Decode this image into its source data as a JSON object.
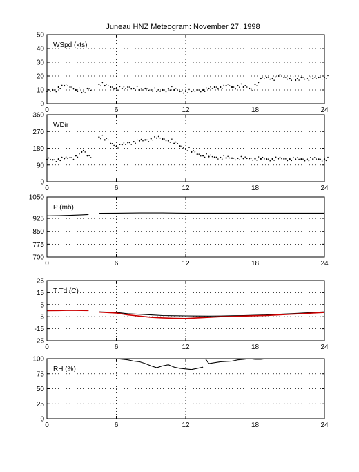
{
  "figure": {
    "title": "Juneau HNZ Meteogram:  November 27, 1998"
  },
  "chart_data": [
    {
      "type": "scatter",
      "panel_label": "WSpd (kts)",
      "xlim": [
        0,
        24
      ],
      "xticks": [
        0,
        6,
        12,
        18,
        24
      ],
      "ylim": [
        0,
        50
      ],
      "yticks": [
        0,
        10,
        20,
        30,
        40,
        50
      ],
      "grid": true,
      "series": [
        {
          "color": "#000000",
          "style": "dots",
          "x": [
            0.0,
            0.5,
            1.0,
            1.5,
            2.0,
            2.5,
            3.0,
            3.5,
            4.5,
            5.0,
            5.5,
            6.0,
            6.5,
            7.0,
            7.5,
            8.0,
            8.5,
            9.0,
            9.5,
            10.0,
            10.5,
            11.0,
            11.5,
            12.0,
            12.5,
            13.0,
            13.5,
            14.0,
            14.5,
            15.0,
            15.5,
            16.0,
            16.5,
            17.0,
            17.5,
            18.0,
            18.5,
            19.0,
            19.5,
            20.0,
            20.5,
            21.0,
            21.5,
            22.0,
            22.5,
            23.0,
            23.5,
            24.0
          ],
          "y": [
            9,
            10,
            12,
            13,
            12,
            10,
            8,
            11,
            14,
            13,
            12,
            11,
            11,
            12,
            11,
            10,
            11,
            10,
            9,
            10,
            11,
            10,
            9,
            9,
            9,
            10,
            10,
            11,
            12,
            12,
            13,
            12,
            13,
            12,
            11,
            14,
            18,
            19,
            18,
            20,
            19,
            18,
            17,
            19,
            18,
            18,
            19,
            19
          ]
        }
      ]
    },
    {
      "type": "scatter",
      "panel_label": "WDir",
      "xlim": [
        0,
        24
      ],
      "xticks": [
        0,
        6,
        12,
        18,
        24
      ],
      "ylim": [
        0,
        360
      ],
      "yticks": [
        0,
        90,
        180,
        270,
        360
      ],
      "grid": true,
      "series": [
        {
          "color": "#000000",
          "style": "dots",
          "x": [
            0.0,
            0.5,
            1.0,
            1.5,
            2.0,
            2.5,
            3.0,
            3.5,
            4.5,
            5.0,
            5.5,
            6.0,
            6.5,
            7.0,
            7.5,
            8.0,
            8.5,
            9.0,
            9.5,
            10.0,
            10.5,
            11.0,
            11.5,
            12.0,
            12.5,
            13.0,
            13.5,
            14.0,
            14.5,
            15.0,
            15.5,
            16.0,
            16.5,
            17.0,
            17.5,
            18.0,
            18.5,
            19.0,
            19.5,
            20.0,
            20.5,
            21.0,
            21.5,
            22.0,
            22.5,
            23.0,
            23.5,
            24.0
          ],
          "y": [
            120,
            118,
            122,
            125,
            130,
            140,
            160,
            140,
            240,
            225,
            205,
            190,
            200,
            210,
            215,
            220,
            225,
            232,
            235,
            230,
            220,
            205,
            192,
            175,
            160,
            148,
            140,
            135,
            132,
            130,
            128,
            127,
            126,
            125,
            125,
            124,
            123,
            122,
            123,
            124,
            123,
            122,
            121,
            122,
            121,
            122,
            121,
            122
          ]
        }
      ]
    },
    {
      "type": "line",
      "panel_label": "P (mb)",
      "xlim": [
        0,
        24
      ],
      "xticks": [
        0,
        6,
        12,
        18,
        24
      ],
      "ylim": [
        700,
        1050
      ],
      "yticks": [
        700,
        775,
        850,
        925,
        1050
      ],
      "grid": true,
      "series": [
        {
          "color": "#000000",
          "segments": [
            {
              "x": [
                0,
                1,
                2,
                3,
                3.6
              ],
              "y": [
                940,
                941,
                943,
                946,
                948
              ]
            },
            {
              "x": [
                4.5,
                6,
                8,
                10,
                12,
                14,
                16,
                18,
                20,
                22,
                24
              ],
              "y": [
                955,
                956,
                957,
                957,
                956,
                956,
                956,
                956,
                956,
                956,
                956
              ]
            }
          ]
        }
      ]
    },
    {
      "type": "line",
      "panel_label": "T Td (C)",
      "xlim": [
        0,
        24
      ],
      "xticks": [
        0,
        6,
        12,
        18,
        24
      ],
      "ylim": [
        -25,
        25
      ],
      "yticks": [
        -25,
        -15,
        -5,
        5,
        15,
        25
      ],
      "grid": true,
      "series": [
        {
          "color": "#000000",
          "segments": [
            {
              "x": [
                0,
                1,
                2,
                3,
                3.6
              ],
              "y": [
                0,
                0.2,
                0.5,
                0.4,
                0.3
              ]
            },
            {
              "x": [
                4.5,
                6,
                7,
                8,
                9,
                10,
                11,
                12,
                13,
                14,
                15,
                16,
                17,
                18,
                19,
                20,
                21,
                22,
                23,
                24
              ],
              "y": [
                -1.0,
                -1.5,
                -2.5,
                -3.0,
                -3.5,
                -4.0,
                -4.2,
                -4.3,
                -4.4,
                -4.5,
                -4.4,
                -4.2,
                -4.0,
                -3.8,
                -3.5,
                -3.0,
                -2.5,
                -2.0,
                -1.5,
                -1.0
              ]
            }
          ]
        },
        {
          "color": "#cc0000",
          "segments": [
            {
              "x": [
                0,
                1,
                2,
                3,
                3.6
              ],
              "y": [
                0,
                0.1,
                0.3,
                0.2,
                0.1
              ]
            },
            {
              "x": [
                4.5,
                6,
                7,
                8,
                9,
                10,
                11,
                12,
                13,
                14,
                15,
                16,
                17,
                18,
                19,
                20,
                21,
                22,
                23,
                24
              ],
              "y": [
                -1.2,
                -2.0,
                -3.5,
                -4.5,
                -5.5,
                -6.0,
                -6.3,
                -6.5,
                -6.0,
                -5.5,
                -5.0,
                -4.8,
                -4.5,
                -4.2,
                -4.0,
                -3.5,
                -3.0,
                -2.5,
                -2.0,
                -1.5
              ]
            }
          ]
        }
      ]
    },
    {
      "type": "line",
      "panel_label": "RH (%)",
      "xlim": [
        0,
        24
      ],
      "xticks": [
        0,
        6,
        12,
        18,
        24
      ],
      "ylim": [
        0,
        100
      ],
      "yticks": [
        0,
        25,
        50,
        75,
        100
      ],
      "grid": true,
      "series": [
        {
          "color": "#000000",
          "segments": [
            {
              "x": [
                6.0,
                7.0,
                7.5,
                8.0,
                8.5,
                9.0,
                9.5,
                10.0,
                10.5,
                11.0,
                11.5,
                12.0,
                12.5,
                13.0,
                13.5
              ],
              "y": [
                100,
                98,
                96,
                95,
                92,
                88,
                85,
                88,
                90,
                86,
                84,
                83,
                82,
                84,
                86
              ]
            },
            {
              "x": [
                13.7,
                14.0,
                15.0,
                16.0,
                16.5,
                17.0,
                17.5,
                18.0,
                18.5,
                19.0
              ],
              "y": [
                100,
                92,
                95,
                96,
                98,
                99,
                100,
                99,
                99,
                100
              ]
            }
          ]
        }
      ]
    }
  ]
}
